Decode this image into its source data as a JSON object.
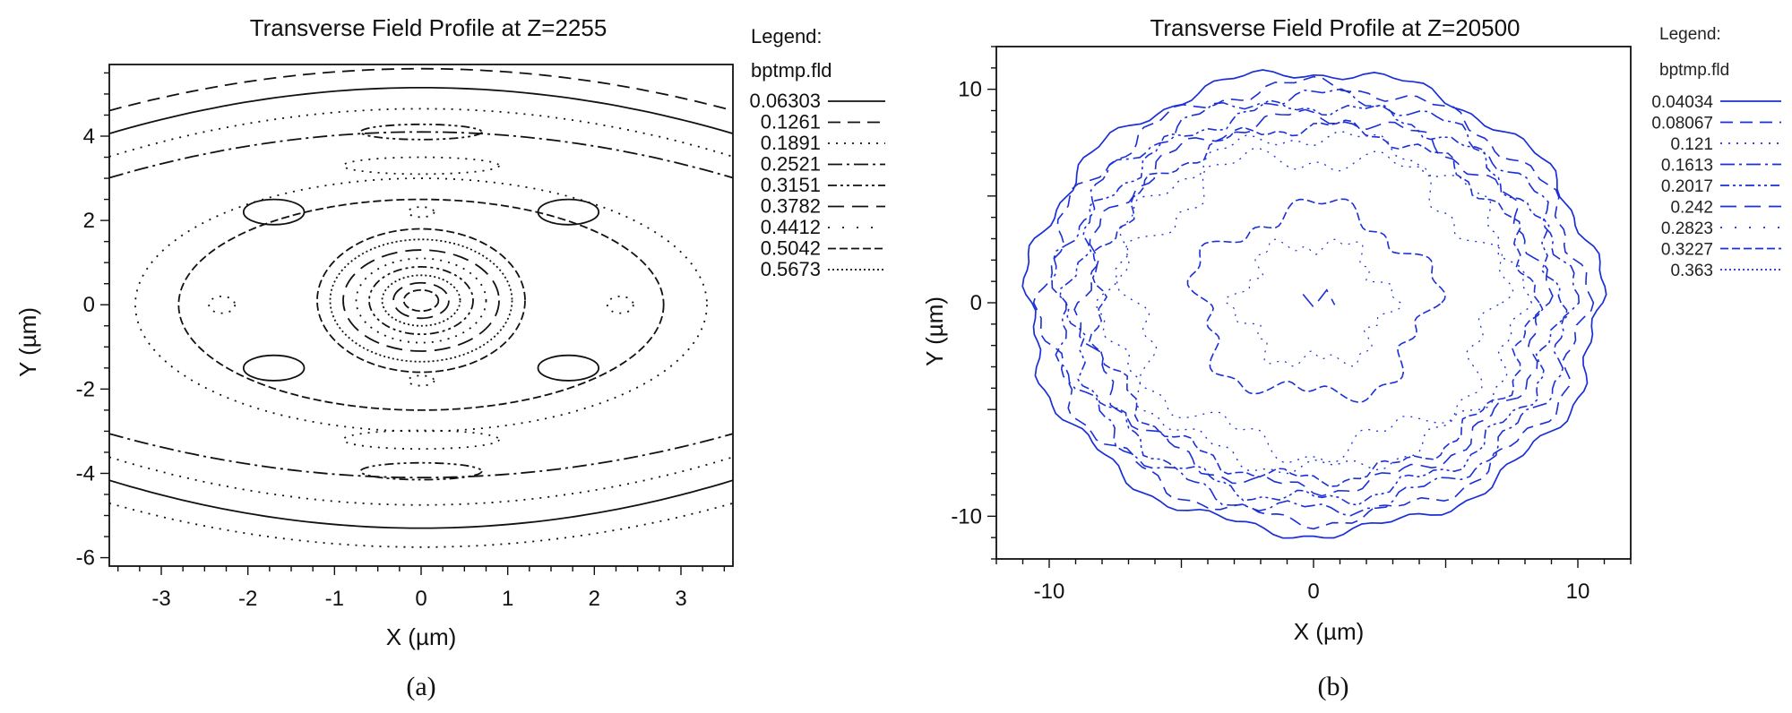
{
  "chart_data": [
    {
      "type": "contour",
      "panel_label": "(a)",
      "title": "Transverse Field Profile at Z=2255",
      "xlabel": "X (µm)",
      "ylabel": "Y (µm)",
      "xlim": [
        -3.6,
        3.6
      ],
      "ylim": [
        -6.2,
        5.7
      ],
      "xticks": [
        -3,
        -2,
        -1,
        0,
        1,
        2,
        3
      ],
      "yticks": [
        -6,
        -4,
        -2,
        0,
        2,
        4
      ],
      "legend_title": "Legend:",
      "legend_subtitle": "bptmp.fld",
      "legend_position": "right",
      "color": "#111111",
      "levels": [
        "0.06303",
        "0.1261",
        "0.1891",
        "0.2521",
        "0.3151",
        "0.3782",
        "0.4412",
        "0.5042",
        "0.5673"
      ]
    },
    {
      "type": "contour",
      "panel_label": "(b)",
      "title": "Transverse Field Profile at Z=20500",
      "xlabel": "X (µm)",
      "ylabel": "Y (µm)",
      "xlim": [
        -12,
        12
      ],
      "ylim": [
        -12,
        12
      ],
      "xticks": [
        -10,
        0,
        10
      ],
      "yticks": [
        -10,
        0,
        10
      ],
      "legend_title": "Legend:",
      "legend_subtitle": "bptmp.fld",
      "legend_position": "right",
      "color": "#1a2fd6",
      "levels": [
        "0.04034",
        "0.08067",
        "0.121",
        "0.1613",
        "0.2017",
        "0.242",
        "0.2823",
        "0.3227",
        "0.363"
      ]
    }
  ]
}
